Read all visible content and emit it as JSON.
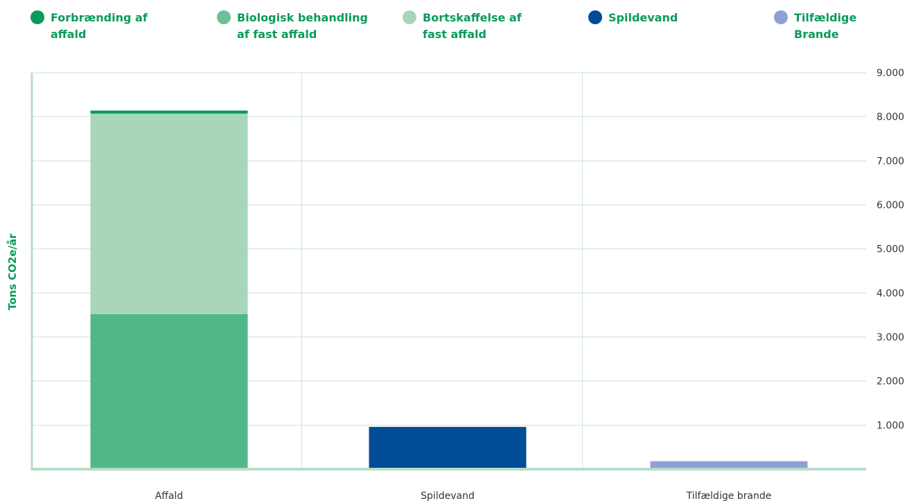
{
  "chart_data": {
    "type": "bar",
    "stacked": true,
    "title": "",
    "xlabel": "",
    "ylabel": "Tons CO2e/år",
    "ylim": [
      0,
      9000
    ],
    "yticks": [
      1000,
      2000,
      3000,
      4000,
      5000,
      6000,
      7000,
      8000,
      9000
    ],
    "ytick_labels": [
      "1.000",
      "2.000",
      "3.000",
      "4.000",
      "5.000",
      "6.000",
      "7.000",
      "8.000",
      "9.000"
    ],
    "y_axis_position": "right",
    "grid": true,
    "legend_position": "top",
    "categories": [
      "Affald",
      "Spildevand",
      "Tilfældige brande"
    ],
    "series": [
      {
        "name": "Biologisk behandling af fast affald",
        "color": "#52b788",
        "values": [
          3520,
          0,
          0
        ]
      },
      {
        "name": "Bortskaffelse af fast affald",
        "color": "#a9d6bb",
        "values": [
          4550,
          0,
          0
        ]
      },
      {
        "name": "Forbrænding af affald",
        "color": "#0a9a5c",
        "values": [
          70,
          0,
          0
        ]
      },
      {
        "name": "Spildevand",
        "color": "#004c97",
        "values": [
          0,
          960,
          0
        ]
      },
      {
        "name": "Tilfældige Brande",
        "color": "#8fa0d4",
        "values": [
          0,
          0,
          180
        ]
      }
    ],
    "legend": [
      {
        "label": "Forbrænding af affald",
        "color": "#0a9a5c"
      },
      {
        "label": "Biologisk behandling af fast affald",
        "color": "#6dbf95"
      },
      {
        "label": "Bortskaffelse af fast affald",
        "color": "#a9d6bb"
      },
      {
        "label": "Spildevand",
        "color": "#004c97"
      },
      {
        "label": "Tilfældige Brande",
        "color": "#8fa0d4"
      }
    ],
    "colors": {
      "grid": "#c9e6d3",
      "axis": "#b7dcc5",
      "text": "#333333",
      "accent": "#0a9a5c"
    }
  }
}
